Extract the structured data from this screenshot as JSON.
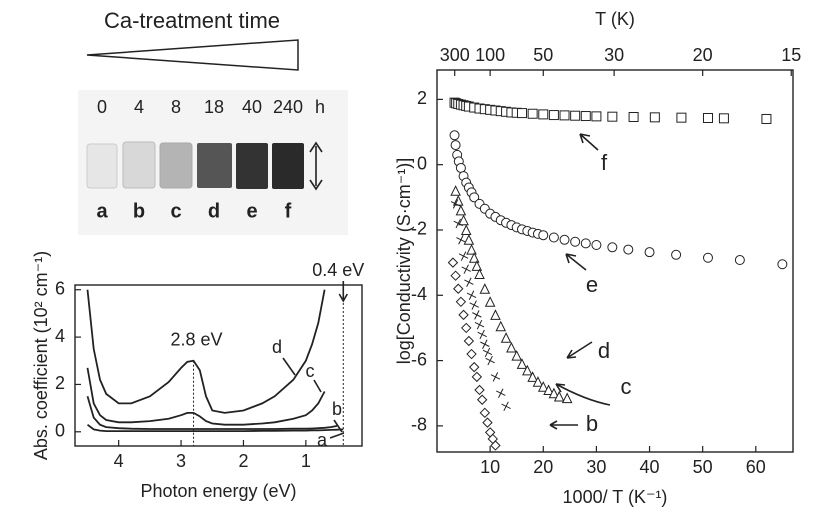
{
  "photo": {
    "title": "Ca-treatment time",
    "hours": [
      "0",
      "4",
      "8",
      "18",
      "40",
      "240"
    ],
    "unit": "h",
    "samples": [
      "a",
      "b",
      "c",
      "d",
      "e",
      "f"
    ]
  },
  "chart_data": [
    {
      "type": "line",
      "xlabel": "Photon energy (eV)",
      "ylabel": "Abs. coefficient (10² cm⁻¹)",
      "xlim": [
        4.7,
        0.1
      ],
      "ylim": [
        -0.6,
        6.2
      ],
      "xticks": [
        4,
        3,
        2,
        1
      ],
      "yticks": [
        0,
        2,
        4,
        6
      ],
      "annotations": [
        {
          "text": "2.8 eV",
          "x": 2.8
        },
        {
          "text": "0.4 eV",
          "x": 0.4
        }
      ],
      "x": [
        4.5,
        4.4,
        4.3,
        4.2,
        4.0,
        3.8,
        3.5,
        3.2,
        3.0,
        2.9,
        2.8,
        2.7,
        2.6,
        2.5,
        2.3,
        2.0,
        1.7,
        1.5,
        1.2,
        1.0,
        0.9,
        0.8,
        0.7,
        0.6,
        0.5,
        0.4
      ],
      "series": [
        {
          "name": "d",
          "color": "#222222",
          "values": [
            6.0,
            3.5,
            2.2,
            1.6,
            1.2,
            1.2,
            1.5,
            2.1,
            2.7,
            2.95,
            3.0,
            2.6,
            1.5,
            0.9,
            0.8,
            0.9,
            1.2,
            1.5,
            2.2,
            3.0,
            3.7,
            4.6,
            6.0,
            null,
            null,
            null
          ]
        },
        {
          "name": "c",
          "color": "#222222",
          "values": [
            2.7,
            1.2,
            0.7,
            0.5,
            0.4,
            0.4,
            0.45,
            0.55,
            0.7,
            0.8,
            0.8,
            0.65,
            0.45,
            0.35,
            0.3,
            0.3,
            0.35,
            0.4,
            0.55,
            0.7,
            0.9,
            1.2,
            1.7,
            null,
            null,
            null
          ]
        },
        {
          "name": "b",
          "color": "#222222",
          "values": [
            1.5,
            0.6,
            0.3,
            0.2,
            0.15,
            0.13,
            0.12,
            0.12,
            0.12,
            0.12,
            0.12,
            0.12,
            0.12,
            0.12,
            0.12,
            0.12,
            0.12,
            0.12,
            0.13,
            0.13,
            0.14,
            0.15,
            0.17,
            0.2,
            0.25,
            null
          ]
        },
        {
          "name": "a",
          "color": "#222222",
          "values": [
            0.3,
            0.1,
            0.05,
            0.03,
            0.03,
            0.03,
            0.03,
            0.03,
            0.03,
            0.03,
            0.03,
            0.03,
            0.03,
            0.03,
            0.03,
            0.03,
            0.04,
            0.04,
            0.05,
            0.05,
            0.06,
            0.06,
            0.07,
            0.08,
            0.09,
            0.1
          ]
        }
      ]
    },
    {
      "type": "scatter",
      "xlabel": "1000/ T (K⁻¹)",
      "ylabel": "log[Conductivity (S·cm⁻¹)]",
      "x2label": "T (K)",
      "xlim": [
        0,
        67
      ],
      "ylim": [
        -8.8,
        2.9
      ],
      "xticks": [
        10,
        20,
        30,
        40,
        50,
        60
      ],
      "yticks": [
        -8,
        -6,
        -4,
        -2,
        0,
        2
      ],
      "x2ticks": [
        300,
        100,
        50,
        30,
        20,
        15
      ],
      "series": [
        {
          "name": "f",
          "color": "#222222",
          "marker": "square",
          "x": [
            3.3,
            3.6,
            4,
            4.5,
            5,
            5.5,
            6,
            7,
            8,
            9,
            10,
            11,
            12,
            13,
            14,
            15,
            16,
            18,
            20,
            22,
            24,
            26,
            28,
            30,
            33,
            37,
            41,
            46,
            51,
            54,
            62
          ],
          "values": [
            1.9,
            1.88,
            1.86,
            1.84,
            1.82,
            1.8,
            1.78,
            1.75,
            1.72,
            1.7,
            1.68,
            1.66,
            1.64,
            1.62,
            1.6,
            1.59,
            1.58,
            1.56,
            1.54,
            1.52,
            1.51,
            1.5,
            1.49,
            1.48,
            1.47,
            1.46,
            1.45,
            1.44,
            1.43,
            1.42,
            1.4
          ]
        },
        {
          "name": "e",
          "color": "#222222",
          "marker": "circle",
          "x": [
            3.3,
            3.5,
            3.8,
            4.1,
            4.5,
            5,
            5.5,
            6,
            6.5,
            7,
            8,
            9,
            10,
            11,
            12,
            13,
            14,
            15,
            16,
            17,
            18,
            19,
            20,
            22,
            24,
            26,
            28,
            30,
            33,
            36,
            40,
            45,
            51,
            57,
            65
          ],
          "values": [
            0.9,
            0.6,
            0.3,
            0.1,
            -0.1,
            -0.35,
            -0.55,
            -0.7,
            -0.85,
            -1.0,
            -1.2,
            -1.35,
            -1.5,
            -1.6,
            -1.7,
            -1.78,
            -1.85,
            -1.92,
            -1.98,
            -2.03,
            -2.08,
            -2.12,
            -2.16,
            -2.23,
            -2.3,
            -2.36,
            -2.41,
            -2.46,
            -2.53,
            -2.6,
            -2.68,
            -2.76,
            -2.85,
            -2.92,
            -3.05
          ]
        },
        {
          "name": "d",
          "color": "#222222",
          "marker": "triangle",
          "x": [
            3.5,
            4,
            4.5,
            5,
            5.5,
            6,
            6.5,
            7,
            7.5,
            8,
            9,
            10,
            11,
            12,
            13,
            14,
            15,
            16,
            17,
            18,
            19,
            20,
            21,
            22,
            23,
            24.5
          ],
          "values": [
            -0.8,
            -1.1,
            -1.4,
            -1.7,
            -2.0,
            -2.3,
            -2.6,
            -2.85,
            -3.1,
            -3.35,
            -3.8,
            -4.2,
            -4.6,
            -4.95,
            -5.3,
            -5.6,
            -5.85,
            -6.1,
            -6.3,
            -6.5,
            -6.65,
            -6.8,
            -6.9,
            -7.0,
            -7.1,
            -7.15
          ]
        },
        {
          "name": "c",
          "color": "#222222",
          "marker": "cross",
          "x": [
            3.5,
            4,
            4.5,
            5,
            5.5,
            6,
            6.5,
            7,
            7.5,
            8,
            8.5,
            9,
            9.5,
            10,
            11,
            12,
            13
          ],
          "values": [
            -1.2,
            -1.8,
            -2.3,
            -2.8,
            -3.2,
            -3.6,
            -4.0,
            -4.3,
            -4.6,
            -4.9,
            -5.2,
            -5.5,
            -5.75,
            -6.0,
            -6.5,
            -7.0,
            -7.4
          ]
        },
        {
          "name": "b",
          "color": "#222222",
          "marker": "diamond",
          "x": [
            3,
            3.5,
            4,
            4.5,
            5,
            5.5,
            6,
            6.5,
            7,
            7.5,
            8,
            8.5,
            9,
            9.5,
            10,
            10.5,
            11
          ],
          "values": [
            -3.0,
            -3.4,
            -3.8,
            -4.2,
            -4.6,
            -5.0,
            -5.4,
            -5.8,
            -6.2,
            -6.5,
            -6.9,
            -7.2,
            -7.6,
            -7.9,
            -8.2,
            -8.4,
            -8.6
          ]
        }
      ]
    }
  ]
}
